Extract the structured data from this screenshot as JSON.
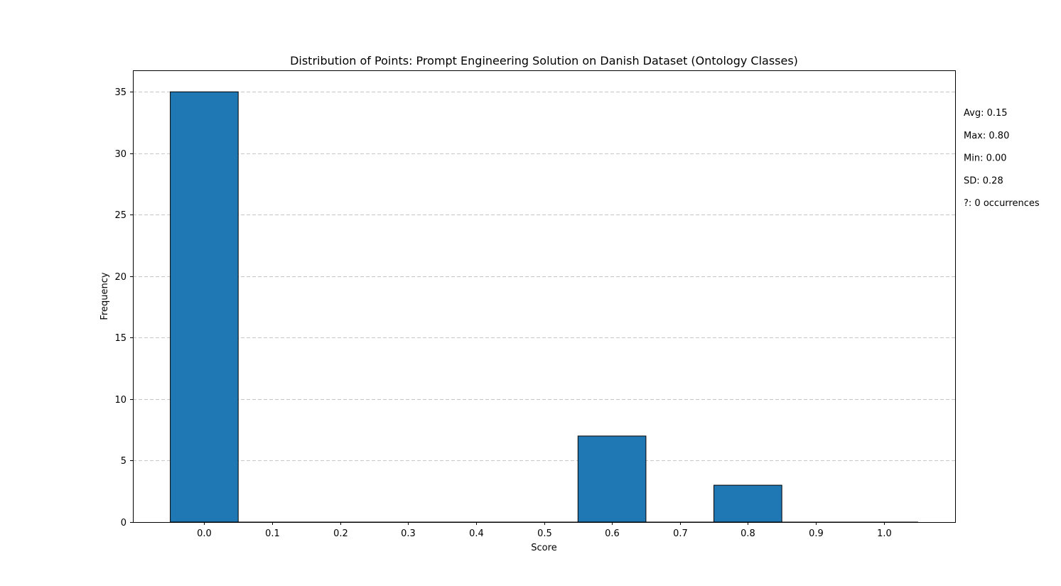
{
  "chart_data": {
    "type": "bar",
    "title": "Distribution of Points: Prompt Engineering Solution on Danish Dataset (Ontology Classes)",
    "xlabel": "Score",
    "ylabel": "Frequency",
    "bins": [
      {
        "x": 0.0,
        "value": 35
      },
      {
        "x": 0.1,
        "value": 0
      },
      {
        "x": 0.2,
        "value": 0
      },
      {
        "x": 0.3,
        "value": 0
      },
      {
        "x": 0.4,
        "value": 0
      },
      {
        "x": 0.5,
        "value": 0
      },
      {
        "x": 0.6,
        "value": 7
      },
      {
        "x": 0.7,
        "value": 0
      },
      {
        "x": 0.8,
        "value": 3
      },
      {
        "x": 0.9,
        "value": 0
      },
      {
        "x": 1.0,
        "value": 0
      }
    ],
    "bar_width": 0.1,
    "xticks": [
      "0.0",
      "0.1",
      "0.2",
      "0.3",
      "0.4",
      "0.5",
      "0.6",
      "0.7",
      "0.8",
      "0.9",
      "1.0"
    ],
    "xtick_values": [
      0.0,
      0.1,
      0.2,
      0.3,
      0.4,
      0.5,
      0.6,
      0.7,
      0.8,
      0.9,
      1.0
    ],
    "yticks": [
      "0",
      "5",
      "10",
      "15",
      "20",
      "25",
      "30",
      "35"
    ],
    "ytick_values": [
      0,
      5,
      10,
      15,
      20,
      25,
      30,
      35
    ],
    "xlim": [
      -0.105,
      1.105
    ],
    "ylim": [
      0,
      36.75
    ],
    "grid": "y-dashed",
    "bar_color": "#1f77b4",
    "bar_edge_color": "#000000",
    "grid_color": "#c8c8c8",
    "stats": [
      "Avg: 0.15",
      "Max: 0.80",
      "Min: 0.00",
      "SD: 0.28",
      "?: 0 occurrences"
    ]
  }
}
